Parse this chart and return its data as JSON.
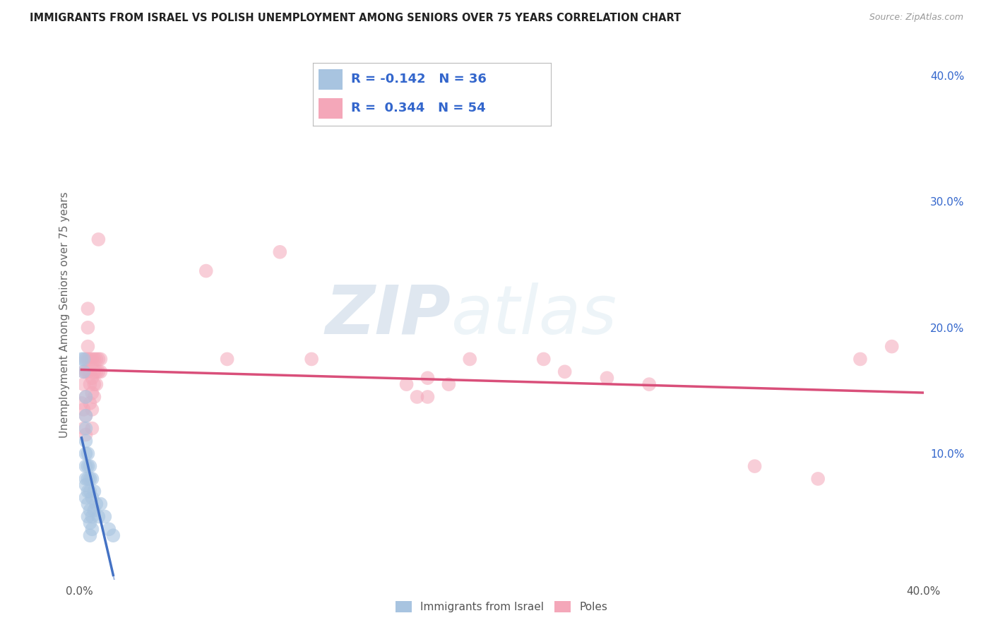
{
  "title": "IMMIGRANTS FROM ISRAEL VS POLISH UNEMPLOYMENT AMONG SENIORS OVER 75 YEARS CORRELATION CHART",
  "source": "Source: ZipAtlas.com",
  "ylabel": "Unemployment Among Seniors over 75 years",
  "xlim": [
    0.0,
    0.4
  ],
  "ylim": [
    0.0,
    0.42
  ],
  "y_ticks_right": [
    0.0,
    0.1,
    0.2,
    0.3,
    0.4
  ],
  "y_tick_labels_right": [
    "",
    "10.0%",
    "20.0%",
    "30.0%",
    "40.0%"
  ],
  "legend_labels_bottom": [
    "Immigrants from Israel",
    "Poles"
  ],
  "background_color": "#ffffff",
  "grid_color": "#d0d8e0",
  "watermark_zip": "ZIP",
  "watermark_atlas": "atlas",
  "israel_color": "#a8c4e0",
  "israel_line_color": "#4472c4",
  "poles_color": "#f4a7b9",
  "poles_line_color": "#d94f7a",
  "israel_R": -0.142,
  "poles_R": 0.344,
  "israel_N": 36,
  "poles_N": 54,
  "israel_scatter": [
    [
      0.001,
      0.175
    ],
    [
      0.002,
      0.165
    ],
    [
      0.002,
      0.175
    ],
    [
      0.003,
      0.145
    ],
    [
      0.003,
      0.13
    ],
    [
      0.003,
      0.12
    ],
    [
      0.003,
      0.11
    ],
    [
      0.003,
      0.1
    ],
    [
      0.003,
      0.09
    ],
    [
      0.003,
      0.08
    ],
    [
      0.003,
      0.075
    ],
    [
      0.003,
      0.065
    ],
    [
      0.004,
      0.1
    ],
    [
      0.004,
      0.09
    ],
    [
      0.004,
      0.08
    ],
    [
      0.004,
      0.07
    ],
    [
      0.004,
      0.06
    ],
    [
      0.004,
      0.05
    ],
    [
      0.005,
      0.09
    ],
    [
      0.005,
      0.08
    ],
    [
      0.005,
      0.07
    ],
    [
      0.005,
      0.055
    ],
    [
      0.005,
      0.045
    ],
    [
      0.005,
      0.035
    ],
    [
      0.006,
      0.08
    ],
    [
      0.006,
      0.065
    ],
    [
      0.006,
      0.05
    ],
    [
      0.006,
      0.04
    ],
    [
      0.007,
      0.07
    ],
    [
      0.007,
      0.055
    ],
    [
      0.008,
      0.06
    ],
    [
      0.009,
      0.05
    ],
    [
      0.01,
      0.06
    ],
    [
      0.012,
      0.05
    ],
    [
      0.014,
      0.04
    ],
    [
      0.016,
      0.035
    ]
  ],
  "poles_scatter": [
    [
      0.001,
      0.14
    ],
    [
      0.002,
      0.165
    ],
    [
      0.002,
      0.155
    ],
    [
      0.002,
      0.135
    ],
    [
      0.002,
      0.12
    ],
    [
      0.003,
      0.175
    ],
    [
      0.003,
      0.165
    ],
    [
      0.003,
      0.145
    ],
    [
      0.003,
      0.13
    ],
    [
      0.003,
      0.115
    ],
    [
      0.004,
      0.215
    ],
    [
      0.004,
      0.2
    ],
    [
      0.004,
      0.185
    ],
    [
      0.004,
      0.175
    ],
    [
      0.004,
      0.165
    ],
    [
      0.005,
      0.175
    ],
    [
      0.005,
      0.165
    ],
    [
      0.005,
      0.155
    ],
    [
      0.005,
      0.14
    ],
    [
      0.006,
      0.175
    ],
    [
      0.006,
      0.16
    ],
    [
      0.006,
      0.148
    ],
    [
      0.006,
      0.135
    ],
    [
      0.006,
      0.12
    ],
    [
      0.007,
      0.175
    ],
    [
      0.007,
      0.165
    ],
    [
      0.007,
      0.155
    ],
    [
      0.007,
      0.145
    ],
    [
      0.008,
      0.175
    ],
    [
      0.008,
      0.165
    ],
    [
      0.008,
      0.155
    ],
    [
      0.009,
      0.27
    ],
    [
      0.009,
      0.175
    ],
    [
      0.009,
      0.165
    ],
    [
      0.01,
      0.175
    ],
    [
      0.01,
      0.165
    ],
    [
      0.06,
      0.245
    ],
    [
      0.07,
      0.175
    ],
    [
      0.095,
      0.26
    ],
    [
      0.11,
      0.175
    ],
    [
      0.155,
      0.155
    ],
    [
      0.16,
      0.145
    ],
    [
      0.165,
      0.16
    ],
    [
      0.165,
      0.145
    ],
    [
      0.175,
      0.155
    ],
    [
      0.185,
      0.175
    ],
    [
      0.22,
      0.175
    ],
    [
      0.23,
      0.165
    ],
    [
      0.25,
      0.16
    ],
    [
      0.27,
      0.155
    ],
    [
      0.32,
      0.09
    ],
    [
      0.35,
      0.08
    ],
    [
      0.37,
      0.175
    ],
    [
      0.385,
      0.185
    ]
  ]
}
